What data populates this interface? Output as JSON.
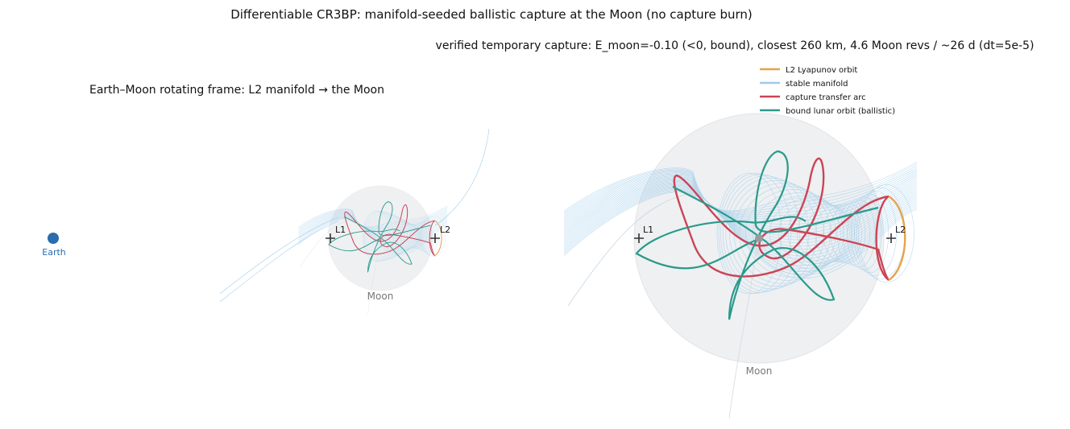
{
  "header": {
    "title": "Differentiable CR3BP: manifold-seeded ballistic capture at the Moon (no capture burn)",
    "subtitle": "verified temporary capture: E_moon=-0.10 (<0, bound), closest 260 km, 4.6 Moon revs / ~26 d (dt=5e-5)"
  },
  "left_panel": {
    "title": "Earth–Moon rotating frame: L2 manifold → the Moon",
    "earth": "Earth",
    "moon": "Moon",
    "l1": "L1",
    "l2": "L2"
  },
  "right_panel": {
    "moon": "Moon",
    "l1": "L1",
    "l2": "L2"
  },
  "legend": [
    {
      "label": "L2 Lyapunov orbit",
      "color": "#e8a24a"
    },
    {
      "label": "stable manifold",
      "color": "#9ccbea"
    },
    {
      "label": "capture transfer arc",
      "color": "#cc4455"
    },
    {
      "label": "bound lunar orbit (ballistic)",
      "color": "#2a9a8a"
    }
  ]
}
